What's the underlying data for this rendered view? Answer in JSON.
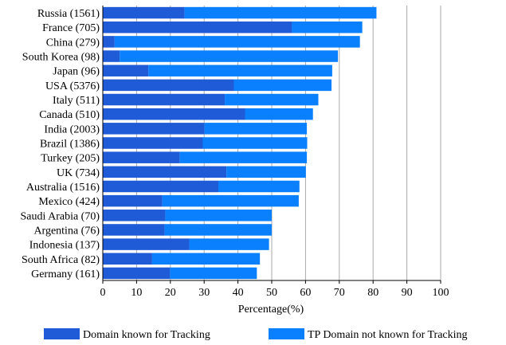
{
  "chart_data": {
    "type": "bar",
    "orientation": "horizontal",
    "stacked": true,
    "categories": [
      "Russia (1561)",
      "France (705)",
      "China (279)",
      "South Korea (98)",
      "Japan (96)",
      "USA (5376)",
      "Italy (511)",
      "Canada (510)",
      "India (2003)",
      "Brazil (1386)",
      "Turkey (205)",
      "UK (734)",
      "Australia (1516)",
      "Mexico (424)",
      "Saudi Arabia (70)",
      "Argentina (76)",
      "Indonesia (137)",
      "South Africa (82)",
      "Germany (161)"
    ],
    "series": [
      {
        "name": "Domain known for Tracking",
        "color": "#1f5bd6",
        "values": [
          24.2,
          56.0,
          3.5,
          5.0,
          13.5,
          38.8,
          36.1,
          42.1,
          30.1,
          29.6,
          22.8,
          36.6,
          34.2,
          17.6,
          18.5,
          18.3,
          25.6,
          14.6,
          19.9
        ]
      },
      {
        "name": "TP Domain not known for Tracking",
        "color": "#0a80ff",
        "values": [
          56.8,
          20.8,
          72.6,
          64.6,
          54.4,
          28.9,
          27.7,
          20.1,
          30.3,
          30.9,
          37.6,
          23.5,
          24.0,
          40.4,
          31.5,
          31.7,
          23.6,
          31.9,
          25.7
        ]
      }
    ],
    "xlabel": "Percentage(%)",
    "xlim": [
      0,
      100
    ],
    "xticks": [
      "0",
      "10",
      "20",
      "30",
      "40",
      "50",
      "60",
      "70",
      "80",
      "90",
      "100"
    ],
    "grid": "vertical",
    "legend": "bottom"
  }
}
